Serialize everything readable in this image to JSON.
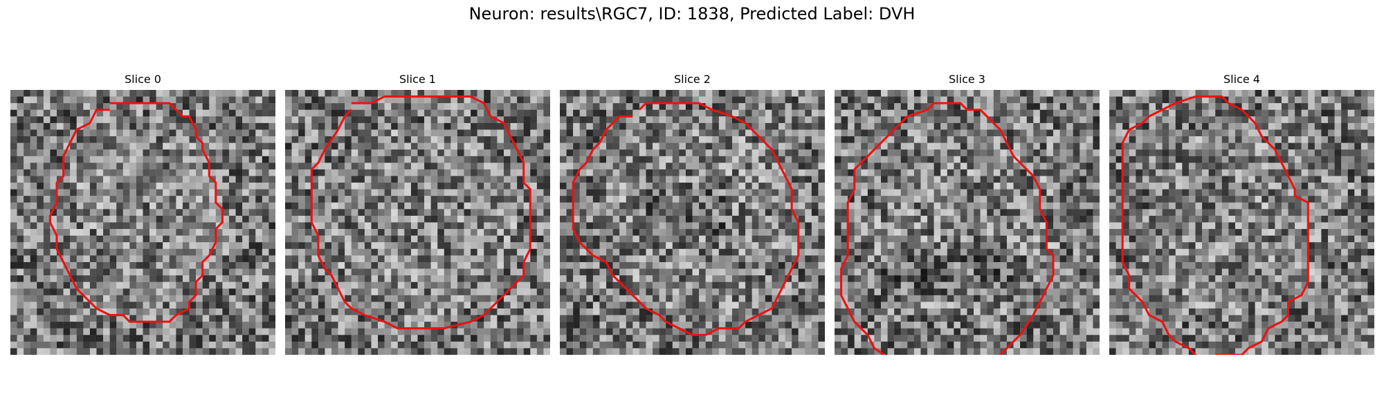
{
  "figure": {
    "title": "Neuron: results\\RGC7, ID: 1838, Predicted Label: DVH",
    "colormap": "gray",
    "contour_color": "#ee1111"
  },
  "slices": [
    {
      "title": "Slice 0",
      "contour": [
        [
          15,
          2
        ],
        [
          24,
          2
        ],
        [
          26,
          4
        ],
        [
          27,
          4
        ],
        [
          28,
          6
        ],
        [
          28,
          7
        ],
        [
          29,
          8
        ],
        [
          29,
          9
        ],
        [
          30,
          11
        ],
        [
          30,
          13
        ],
        [
          31,
          14
        ],
        [
          31,
          17
        ],
        [
          32,
          18
        ],
        [
          32,
          20
        ],
        [
          31,
          21
        ],
        [
          31,
          23
        ],
        [
          30,
          25
        ],
        [
          29,
          26
        ],
        [
          29,
          28
        ],
        [
          28,
          29
        ],
        [
          28,
          31
        ],
        [
          27,
          32
        ],
        [
          27,
          33
        ],
        [
          25,
          34
        ],
        [
          24,
          35
        ],
        [
          18,
          35
        ],
        [
          17,
          34
        ],
        [
          15,
          34
        ],
        [
          13,
          33
        ],
        [
          11,
          31
        ],
        [
          10,
          30
        ],
        [
          9,
          28
        ],
        [
          8,
          26
        ],
        [
          7,
          24
        ],
        [
          7,
          22
        ],
        [
          6,
          20
        ],
        [
          6,
          19
        ],
        [
          7,
          17
        ],
        [
          7,
          14
        ],
        [
          8,
          13
        ],
        [
          8,
          10
        ],
        [
          9,
          8
        ],
        [
          10,
          6
        ],
        [
          12,
          5
        ],
        [
          13,
          3
        ],
        [
          15,
          3
        ]
      ]
    },
    {
      "title": "Slice 1",
      "contour": [
        [
          10,
          2
        ],
        [
          13,
          2
        ],
        [
          15,
          1
        ],
        [
          28,
          1
        ],
        [
          30,
          2
        ],
        [
          31,
          4
        ],
        [
          33,
          5
        ],
        [
          34,
          7
        ],
        [
          35,
          9
        ],
        [
          36,
          11
        ],
        [
          36,
          14
        ],
        [
          37,
          15
        ],
        [
          37,
          24
        ],
        [
          36,
          26
        ],
        [
          36,
          28
        ],
        [
          34,
          30
        ],
        [
          33,
          31
        ],
        [
          32,
          32
        ],
        [
          31,
          33
        ],
        [
          30,
          34
        ],
        [
          28,
          35
        ],
        [
          24,
          36
        ],
        [
          17,
          36
        ],
        [
          15,
          35
        ],
        [
          12,
          34
        ],
        [
          10,
          33
        ],
        [
          9,
          32
        ],
        [
          8,
          30
        ],
        [
          7,
          28
        ],
        [
          6,
          27
        ],
        [
          5,
          25
        ],
        [
          5,
          22
        ],
        [
          4,
          20
        ],
        [
          4,
          12
        ],
        [
          5,
          11
        ],
        [
          6,
          9
        ],
        [
          8,
          6
        ],
        [
          9,
          4
        ],
        [
          10,
          3
        ]
      ]
    },
    {
      "title": "Slice 2",
      "contour": [
        [
          12,
          3
        ],
        [
          13,
          2
        ],
        [
          18,
          2
        ],
        [
          21,
          2
        ],
        [
          23,
          3
        ],
        [
          26,
          4
        ],
        [
          28,
          5
        ],
        [
          30,
          7
        ],
        [
          32,
          9
        ],
        [
          33,
          11
        ],
        [
          34,
          13
        ],
        [
          35,
          15
        ],
        [
          35,
          18
        ],
        [
          36,
          20
        ],
        [
          36,
          25
        ],
        [
          35,
          27
        ],
        [
          34,
          29
        ],
        [
          33,
          31
        ],
        [
          32,
          33
        ],
        [
          30,
          34
        ],
        [
          28,
          35
        ],
        [
          27,
          36
        ],
        [
          24,
          36
        ],
        [
          22,
          37
        ],
        [
          20,
          37
        ],
        [
          18,
          36
        ],
        [
          16,
          35
        ],
        [
          15,
          34
        ],
        [
          13,
          33
        ],
        [
          10,
          30
        ],
        [
          8,
          28
        ],
        [
          7,
          26
        ],
        [
          5,
          25
        ],
        [
          3,
          23
        ],
        [
          2,
          21
        ],
        [
          2,
          14
        ],
        [
          3,
          12
        ],
        [
          4,
          11
        ],
        [
          5,
          9
        ],
        [
          6,
          8
        ],
        [
          7,
          6
        ],
        [
          9,
          4
        ],
        [
          11,
          4
        ]
      ]
    },
    {
      "title": "Slice 3",
      "contour": [
        [
          9,
          41
        ],
        [
          6,
          39
        ],
        [
          5,
          37
        ],
        [
          3,
          35
        ],
        [
          2,
          33
        ],
        [
          1,
          31
        ],
        [
          1,
          27
        ],
        [
          2,
          25
        ],
        [
          2,
          17
        ],
        [
          3,
          15
        ],
        [
          3,
          12
        ],
        [
          5,
          10
        ],
        [
          7,
          8
        ],
        [
          9,
          6
        ],
        [
          11,
          4
        ],
        [
          14,
          3
        ],
        [
          15,
          2
        ],
        [
          19,
          2
        ],
        [
          20,
          3
        ],
        [
          22,
          3
        ],
        [
          24,
          5
        ],
        [
          25,
          6
        ],
        [
          26,
          8
        ],
        [
          27,
          10
        ],
        [
          29,
          12
        ],
        [
          30,
          13
        ],
        [
          31,
          15
        ],
        [
          31,
          18
        ],
        [
          32,
          20
        ],
        [
          32,
          24
        ],
        [
          33,
          25
        ],
        [
          33,
          28
        ],
        [
          32,
          30
        ],
        [
          31,
          32
        ],
        [
          30,
          34
        ],
        [
          28,
          37
        ],
        [
          27,
          38
        ],
        [
          26,
          39
        ],
        [
          25,
          40
        ],
        [
          24,
          41
        ]
      ]
    },
    {
      "title": "Slice 4",
      "contour": [
        [
          14,
          41
        ],
        [
          12,
          39
        ],
        [
          10,
          38
        ],
        [
          9,
          37
        ],
        [
          8,
          35
        ],
        [
          6,
          34
        ],
        [
          5,
          32
        ],
        [
          3,
          30
        ],
        [
          3,
          28
        ],
        [
          2,
          26
        ],
        [
          2,
          8
        ],
        [
          3,
          6
        ],
        [
          5,
          5
        ],
        [
          6,
          4
        ],
        [
          8,
          3
        ],
        [
          10,
          2
        ],
        [
          13,
          1
        ],
        [
          17,
          1
        ],
        [
          18,
          2
        ],
        [
          20,
          3
        ],
        [
          22,
          5
        ],
        [
          23,
          7
        ],
        [
          25,
          9
        ],
        [
          26,
          11
        ],
        [
          27,
          13
        ],
        [
          28,
          15
        ],
        [
          28,
          16
        ],
        [
          30,
          17
        ],
        [
          30,
          29
        ],
        [
          29,
          31
        ],
        [
          27,
          32
        ],
        [
          27,
          34
        ],
        [
          26,
          35
        ],
        [
          24,
          36
        ],
        [
          23,
          38
        ],
        [
          21,
          39
        ],
        [
          20,
          40
        ],
        [
          16,
          40
        ]
      ]
    }
  ]
}
